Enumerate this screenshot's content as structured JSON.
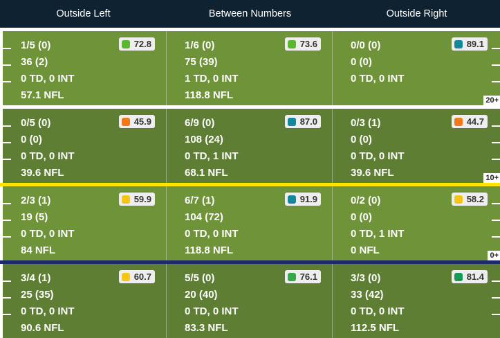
{
  "header": {
    "columns": [
      "Outside Left",
      "Between Numbers",
      "Outside Right"
    ]
  },
  "zones": [
    {
      "yard_label": "20+",
      "cells": [
        {
          "lines": [
            "1/5 (0)",
            "36 (2)",
            "0 TD, 0 INT",
            "57.1 NFL"
          ],
          "grade": "72.8",
          "grade_color": "#5bb82e"
        },
        {
          "lines": [
            "1/6 (0)",
            "75 (39)",
            "1 TD, 0 INT",
            "118.8 NFL"
          ],
          "grade": "73.6",
          "grade_color": "#5bb82e"
        },
        {
          "lines": [
            "0/0 (0)",
            "0 (0)",
            "0 TD, 0 INT",
            ""
          ],
          "grade": "89.1",
          "grade_color": "#13889a"
        }
      ]
    },
    {
      "yard_label": "10+",
      "cells": [
        {
          "lines": [
            "0/5 (0)",
            "0 (0)",
            "0 TD, 0 INT",
            "39.6 NFL"
          ],
          "grade": "45.9",
          "grade_color": "#f07a1a"
        },
        {
          "lines": [
            "6/9 (0)",
            "108 (24)",
            "0 TD, 1 INT",
            "68.1 NFL"
          ],
          "grade": "87.0",
          "grade_color": "#13889a"
        },
        {
          "lines": [
            "0/3 (1)",
            "0 (0)",
            "0 TD, 0 INT",
            "39.6 NFL"
          ],
          "grade": "44.7",
          "grade_color": "#f07a1a"
        }
      ]
    },
    {
      "yard_label": "0+",
      "cells": [
        {
          "lines": [
            "2/3 (1)",
            "19 (5)",
            "0 TD, 0 INT",
            "84 NFL"
          ],
          "grade": "59.9",
          "grade_color": "#f5c518"
        },
        {
          "lines": [
            "6/7 (1)",
            "104 (72)",
            "0 TD, 0 INT",
            "118.8 NFL"
          ],
          "grade": "91.9",
          "grade_color": "#13889a"
        },
        {
          "lines": [
            "0/2 (0)",
            "0 (0)",
            "0 TD, 1 INT",
            "0 NFL"
          ],
          "grade": "58.2",
          "grade_color": "#f5c518"
        }
      ]
    },
    {
      "yard_label": "",
      "cells": [
        {
          "lines": [
            "3/4 (1)",
            "25 (35)",
            "0 TD, 0 INT",
            "90.6 NFL"
          ],
          "grade": "60.7",
          "grade_color": "#f5c518"
        },
        {
          "lines": [
            "5/5 (0)",
            "20 (40)",
            "0 TD, 0 INT",
            "83.3 NFL"
          ],
          "grade": "76.1",
          "grade_color": "#3aa84a"
        },
        {
          "lines": [
            "3/3 (0)",
            "33 (42)",
            "0 TD, 0 INT",
            "112.5 NFL"
          ],
          "grade": "81.4",
          "grade_color": "#17995a"
        }
      ]
    }
  ]
}
